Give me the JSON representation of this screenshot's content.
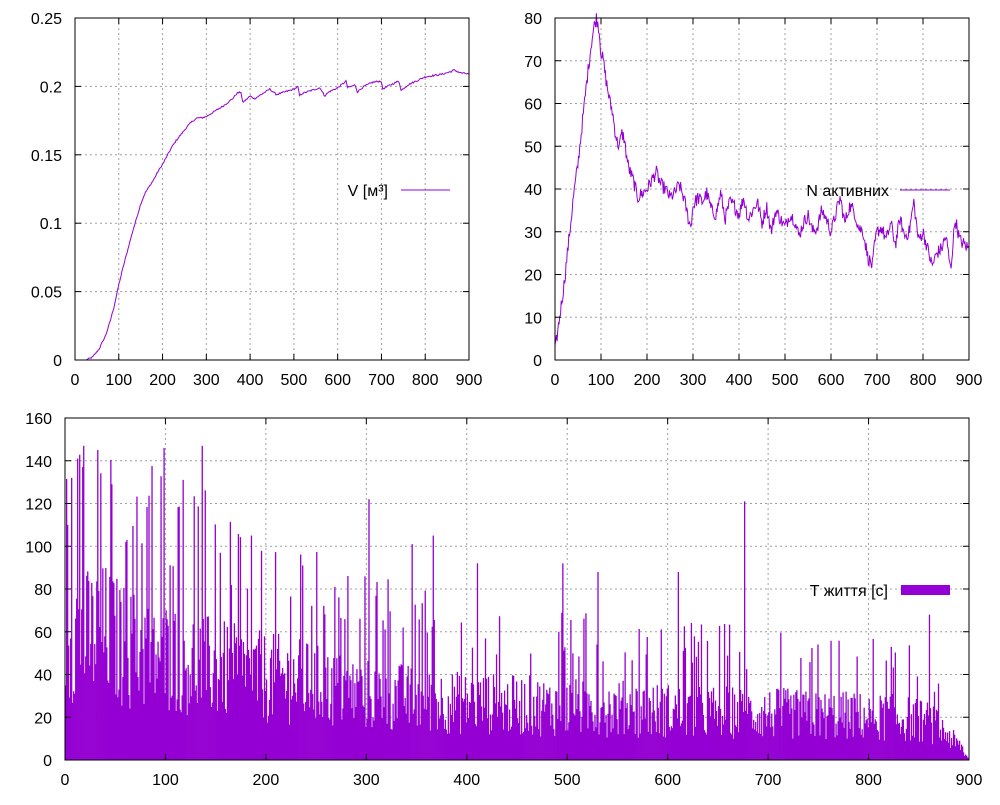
{
  "colors": {
    "series": "#9400d3",
    "grid": "#a0a0a0",
    "axis": "#000000",
    "background": "#ffffff"
  },
  "chart_data": [
    {
      "type": "line",
      "legend": "V [м³]",
      "legend_position": "right-middle",
      "xlim": [
        0,
        900
      ],
      "ylim": [
        0,
        0.25
      ],
      "xticks": [
        0,
        100,
        200,
        300,
        400,
        500,
        600,
        700,
        800,
        900
      ],
      "yticks": [
        0,
        0.05,
        0.1,
        0.15,
        0.2,
        0.25
      ],
      "ytick_labels": [
        "0",
        "0.05",
        "0.1",
        "0.15",
        "0.2",
        "0.25"
      ],
      "grid": true,
      "series": [
        {
          "x": [
            25,
            40,
            55,
            70,
            80,
            90,
            100,
            110,
            120,
            130,
            140,
            150,
            160,
            170,
            180,
            190,
            200,
            210,
            220,
            230,
            240,
            250,
            260,
            270,
            280,
            290,
            300,
            320,
            340,
            360,
            370,
            380,
            382,
            390,
            400,
            410,
            420,
            430,
            440,
            445,
            460,
            480,
            500,
            510,
            512,
            520,
            540,
            560,
            570,
            580,
            600,
            620,
            622,
            640,
            645,
            660,
            680,
            700,
            702,
            720,
            740,
            745,
            760,
            780,
            800,
            820,
            840,
            860,
            865,
            880,
            900
          ],
          "y": [
            0.0,
            0.002,
            0.008,
            0.018,
            0.028,
            0.04,
            0.055,
            0.068,
            0.08,
            0.092,
            0.103,
            0.114,
            0.122,
            0.127,
            0.132,
            0.138,
            0.143,
            0.149,
            0.155,
            0.16,
            0.164,
            0.168,
            0.172,
            0.175,
            0.177,
            0.177,
            0.178,
            0.182,
            0.186,
            0.191,
            0.195,
            0.196,
            0.188,
            0.19,
            0.193,
            0.191,
            0.193,
            0.195,
            0.197,
            0.198,
            0.194,
            0.196,
            0.198,
            0.2,
            0.193,
            0.195,
            0.197,
            0.199,
            0.193,
            0.196,
            0.199,
            0.204,
            0.199,
            0.201,
            0.196,
            0.2,
            0.203,
            0.204,
            0.198,
            0.201,
            0.204,
            0.197,
            0.201,
            0.204,
            0.207,
            0.208,
            0.209,
            0.211,
            0.212,
            0.21,
            0.209
          ]
        }
      ]
    },
    {
      "type": "line",
      "legend": "N активних",
      "legend_position": "right-middle",
      "xlim": [
        0,
        900
      ],
      "ylim": [
        0,
        80
      ],
      "xticks": [
        0,
        100,
        200,
        300,
        400,
        500,
        600,
        700,
        800,
        900
      ],
      "yticks": [
        0,
        10,
        20,
        30,
        40,
        50,
        60,
        70,
        80
      ],
      "grid": true,
      "series": [
        {
          "x": [
            0,
            10,
            20,
            30,
            40,
            50,
            60,
            70,
            80,
            85,
            90,
            95,
            100,
            105,
            110,
            115,
            120,
            125,
            130,
            135,
            140,
            145,
            150,
            155,
            160,
            170,
            175,
            180,
            190,
            200,
            210,
            220,
            230,
            240,
            250,
            260,
            270,
            280,
            290,
            295,
            300,
            310,
            320,
            330,
            340,
            350,
            360,
            370,
            380,
            390,
            400,
            410,
            420,
            430,
            440,
            450,
            460,
            470,
            480,
            490,
            500,
            510,
            520,
            530,
            540,
            550,
            560,
            570,
            580,
            590,
            600,
            610,
            620,
            630,
            640,
            650,
            660,
            670,
            680,
            690,
            695,
            700,
            710,
            720,
            730,
            740,
            750,
            760,
            770,
            780,
            790,
            800,
            810,
            820,
            830,
            840,
            850,
            860,
            870,
            880,
            890,
            900
          ],
          "y": [
            2,
            10,
            18,
            28,
            38,
            46,
            56,
            66,
            75,
            78,
            80,
            78,
            72,
            70,
            66,
            63,
            60,
            58,
            54,
            51,
            50,
            53,
            52,
            48,
            45,
            42,
            40,
            38,
            39,
            40,
            42,
            44,
            41,
            40,
            38,
            39,
            41,
            38,
            33,
            31,
            36,
            38,
            37,
            39,
            35,
            34,
            39,
            33,
            37,
            36,
            34,
            38,
            33,
            35,
            37,
            32,
            36,
            30,
            35,
            33,
            31,
            34,
            33,
            29,
            32,
            34,
            30,
            31,
            35,
            33,
            30,
            34,
            38,
            32,
            36,
            35,
            31,
            30,
            24,
            22,
            27,
            30,
            31,
            28,
            32,
            27,
            33,
            29,
            30,
            37,
            28,
            30,
            26,
            22,
            25,
            26,
            29,
            21,
            33,
            28,
            27,
            26
          ]
        }
      ]
    },
    {
      "type": "bar",
      "legend": "T життя [с]",
      "legend_position": "right-middle",
      "xlim": [
        0,
        900
      ],
      "ylim": [
        0,
        160
      ],
      "xticks": [
        0,
        100,
        200,
        300,
        400,
        500,
        600,
        700,
        800,
        900
      ],
      "yticks": [
        0,
        20,
        40,
        60,
        80,
        100,
        120,
        140,
        160
      ],
      "grid": true,
      "x": [
        0,
        20,
        40,
        60,
        80,
        100,
        120,
        140,
        160,
        180,
        200,
        220,
        240,
        260,
        280,
        300,
        320,
        340,
        360,
        380,
        400,
        420,
        440,
        460,
        480,
        500,
        520,
        540,
        560,
        580,
        600,
        620,
        640,
        660,
        680,
        700,
        720,
        740,
        760,
        780,
        800,
        820,
        840,
        860,
        880,
        900
      ],
      "values": [
        78,
        72,
        74,
        66,
        62,
        60,
        58,
        55,
        52,
        50,
        48,
        47,
        45,
        42,
        40,
        38,
        38,
        36,
        35,
        34,
        33,
        33,
        32,
        32,
        31,
        31,
        30,
        30,
        30,
        29,
        29,
        28,
        28,
        28,
        27,
        27,
        27,
        26,
        26,
        26,
        25,
        25,
        24,
        22,
        14,
        0
      ],
      "peaks": {
        "x": [
          2,
          6,
          12,
          18,
          46,
          98,
          136,
          185,
          302,
          345,
          366,
          410,
          495,
          530,
          610,
          676,
          860,
          893
        ],
        "values": [
          110,
          132,
          141,
          147,
          129,
          146,
          147,
          105,
          122,
          101,
          105,
          92,
          92,
          88,
          88,
          121,
          68,
          69
        ]
      }
    }
  ]
}
